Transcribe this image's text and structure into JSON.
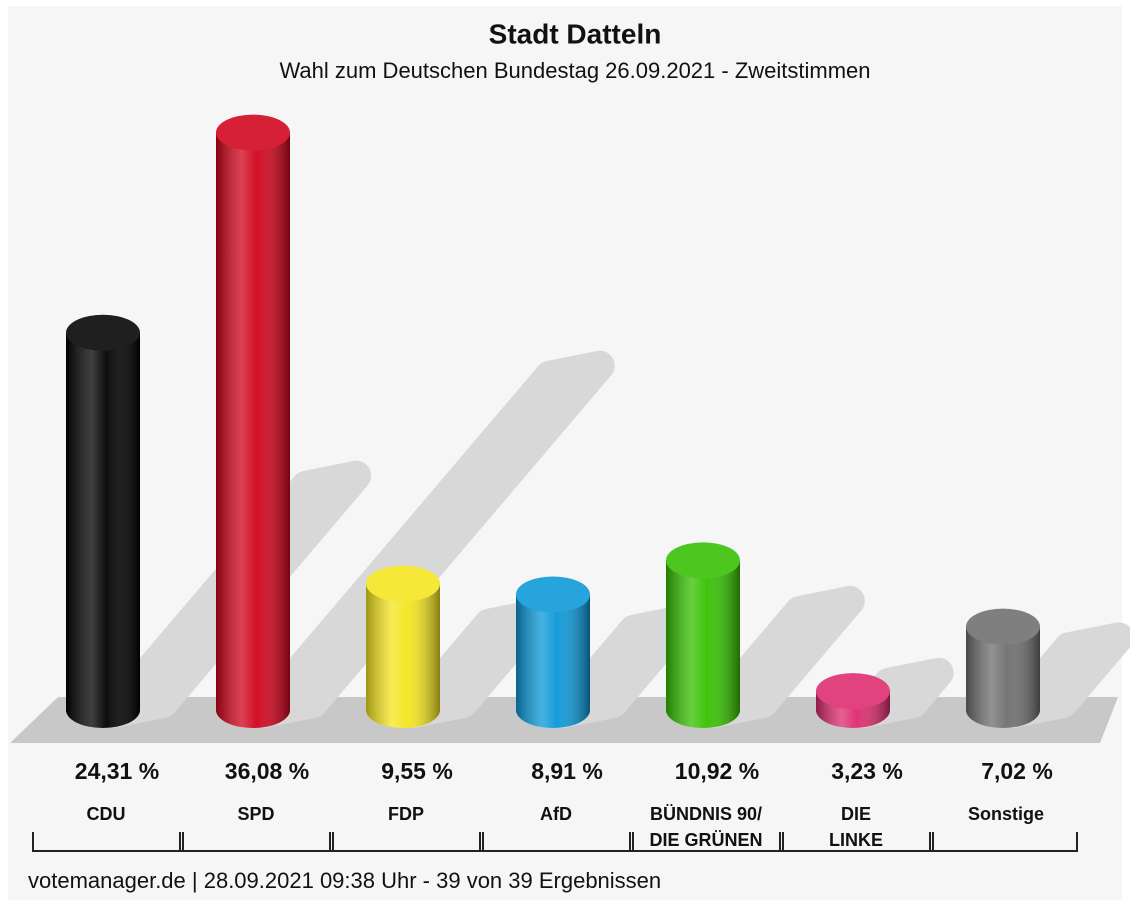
{
  "chart_data": {
    "type": "bar",
    "title": "Stadt Datteln",
    "subtitle": "Wahl zum Deutschen Bundestag 26.09.2021  - Zweitstimmen",
    "categories": [
      [
        "CDU"
      ],
      [
        "SPD"
      ],
      [
        "FDP"
      ],
      [
        "AfD"
      ],
      [
        "BÜNDNIS 90/",
        "DIE GRÜNEN"
      ],
      [
        "DIE",
        "LINKE"
      ],
      [
        "Sonstige"
      ]
    ],
    "values": [
      24.31,
      36.08,
      9.55,
      8.91,
      10.92,
      3.23,
      7.02
    ],
    "value_labels": [
      "24,31 %",
      "36,08 %",
      "9,55 %",
      "8,91 %",
      "10,92 %",
      "3,23 %",
      "7,02 %"
    ],
    "colors": [
      "#000000",
      "#d0021b",
      "#f5e51e",
      "#0a98d8",
      "#35c000",
      "#dc2a6c",
      "#6e6e6e"
    ],
    "footer": "votemanager.de | 28.09.2021 09:38 Uhr - 39 von 39 Ergebnissen"
  }
}
